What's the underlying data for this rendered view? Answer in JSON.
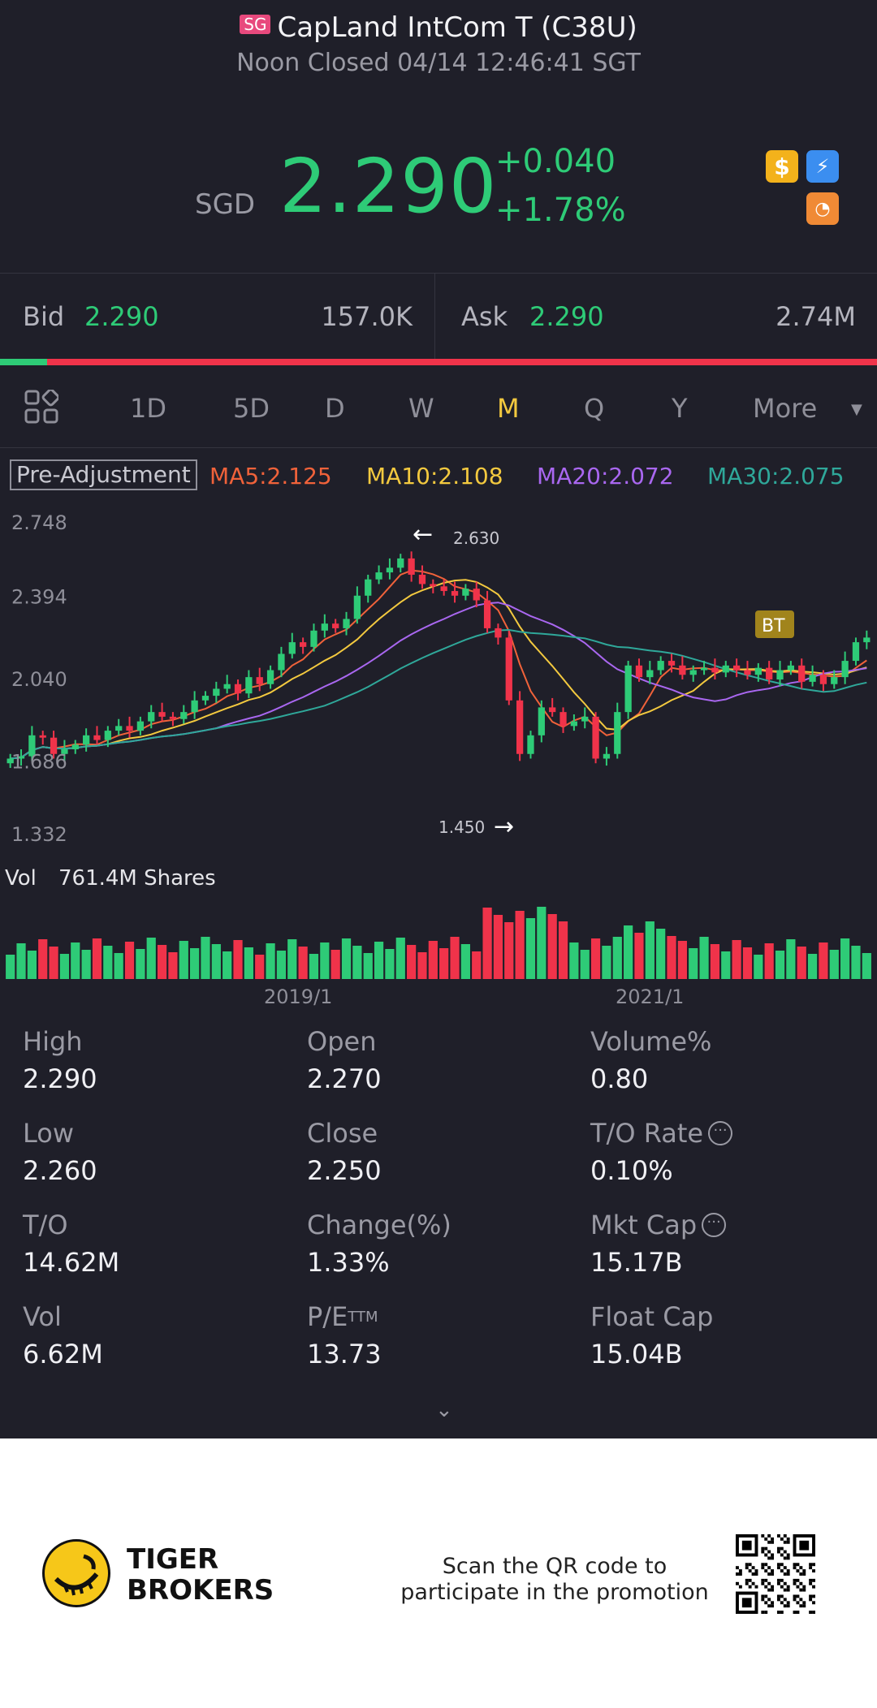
{
  "header": {
    "market_badge": "SG",
    "title": "CapLand IntCom T (C38U)",
    "status": "Noon Closed 04/14 12:46:41 SGT",
    "currency": "SGD",
    "price": "2.290",
    "change": "+0.040",
    "change_pct": "+1.78%",
    "icons": [
      "dollar-icon",
      "flash-icon",
      "chart-icon"
    ]
  },
  "bid_ask": {
    "bid_label": "Bid",
    "bid_price": "2.290",
    "bid_volume": "157.0K",
    "ask_label": "Ask",
    "ask_price": "2.290",
    "ask_volume": "2.74M",
    "bid_ratio": 0.054
  },
  "tabs": {
    "items": [
      "1D",
      "5D",
      "D",
      "W",
      "M",
      "Q",
      "Y",
      "More"
    ],
    "active": "M"
  },
  "indicators": {
    "adjustment": "Pre-Adjustment",
    "ma5": "MA5:2.125",
    "ma10": "MA10:2.108",
    "ma20": "MA20:2.072",
    "ma30": "MA30:2.075"
  },
  "chart_data": {
    "type": "candlestick",
    "y_ticks": [
      "2.748",
      "2.394",
      "2.040",
      "1.686",
      "1.332"
    ],
    "ylim": [
      1.332,
      2.748
    ],
    "high_marker": "2.630",
    "low_marker": "1.450",
    "volume_label": "Vol",
    "volume_value": "761.4M Shares",
    "x_ticks": [
      "2019/1",
      "2021/1"
    ],
    "bt_marker": "BT",
    "colors": {
      "up": "#2ecb77",
      "down": "#f0334a",
      "ma5": "#f0623a",
      "ma10": "#f3c93f",
      "ma20": "#a967f0",
      "ma30": "#2fa89a"
    }
  },
  "stats": [
    {
      "label": "High",
      "value": "2.290",
      "info": false
    },
    {
      "label": "Open",
      "value": "2.270",
      "info": false
    },
    {
      "label": "Volume%",
      "value": "0.80",
      "info": false
    },
    {
      "label": "Low",
      "value": "2.260",
      "info": false
    },
    {
      "label": "Close",
      "value": "2.250",
      "info": false
    },
    {
      "label": "T/O Rate",
      "value": "0.10%",
      "info": true
    },
    {
      "label": "T/O",
      "value": "14.62M",
      "info": false
    },
    {
      "label": "Change(%)",
      "value": "1.33%",
      "info": false
    },
    {
      "label": "Mkt Cap",
      "value": "15.17B",
      "info": true
    },
    {
      "label": "Vol",
      "value": "6.62M",
      "info": false
    },
    {
      "label": "P/E",
      "sup": "TTM",
      "value": "13.73",
      "info": false
    },
    {
      "label": "Float Cap",
      "value": "15.04B",
      "info": false
    }
  ],
  "promo": {
    "brand_line1": "TIGER",
    "brand_line2": "BROKERS",
    "text_line1": "Scan the QR code to",
    "text_line2": "participate in the promotion"
  }
}
